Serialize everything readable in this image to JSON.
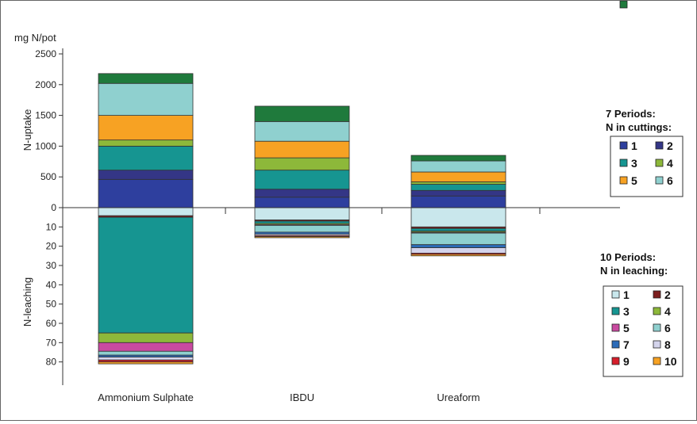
{
  "chart_data": {
    "type": "bar",
    "stacked": true,
    "categories": [
      "Ammonium Sulphate",
      "IBDU",
      "Ureaform"
    ],
    "y_unit_label": "mg N/pot",
    "upper": {
      "ylabel": "N-uptake",
      "ylim": [
        0,
        2500
      ],
      "ticks": [
        "0",
        "500",
        "1000",
        "1500",
        "2000",
        "2500"
      ],
      "legend_title": [
        "7 Periods:",
        "N in cuttings:"
      ],
      "series": [
        {
          "name": "1",
          "color": "#2E3F9E",
          "values": [
            460,
            170,
            190
          ]
        },
        {
          "name": "2",
          "color": "#343686",
          "values": [
            150,
            130,
            90
          ]
        },
        {
          "name": "3",
          "color": "#169591",
          "values": [
            390,
            310,
            100
          ]
        },
        {
          "name": "4",
          "color": "#8DB83A",
          "values": [
            100,
            200,
            40
          ]
        },
        {
          "name": "5",
          "color": "#F7A223",
          "values": [
            400,
            270,
            160
          ]
        },
        {
          "name": "6",
          "color": "#8FD0CF",
          "values": [
            520,
            320,
            180
          ]
        },
        {
          "name": "7",
          "color": "#1F7A3C",
          "values": [
            160,
            250,
            90
          ]
        }
      ]
    },
    "lower": {
      "ylabel": "N-leaching",
      "ylim": [
        0,
        90
      ],
      "ticks": [
        "10",
        "20",
        "30",
        "40",
        "50",
        "60",
        "70",
        "80"
      ],
      "legend_title": [
        "10 Periods:",
        "N in leaching:"
      ],
      "series": [
        {
          "name": "1",
          "color": "#C9E7EC",
          "values": [
            4.2,
            6.4,
            10.0
          ]
        },
        {
          "name": "2",
          "color": "#7C1E1E",
          "values": [
            0.8,
            0.6,
            0.8
          ]
        },
        {
          "name": "3",
          "color": "#169591",
          "values": [
            60.0,
            1.2,
            1.4
          ]
        },
        {
          "name": "4",
          "color": "#8DB83A",
          "values": [
            5.0,
            0.6,
            0.6
          ]
        },
        {
          "name": "5",
          "color": "#C94AA0",
          "values": [
            4.5,
            0.4,
            0.4
          ]
        },
        {
          "name": "6",
          "color": "#8FD0CF",
          "values": [
            2.0,
            3.5,
            6.0
          ]
        },
        {
          "name": "7",
          "color": "#2C6BB8",
          "values": [
            1.0,
            1.0,
            1.6
          ]
        },
        {
          "name": "8",
          "color": "#D4D4EC",
          "values": [
            1.5,
            0.8,
            2.8
          ]
        },
        {
          "name": "9",
          "color": "#D61E2B",
          "values": [
            1.0,
            0.5,
            0.6
          ]
        },
        {
          "name": "10",
          "color": "#F7A223",
          "values": [
            1.0,
            0.6,
            0.8
          ]
        }
      ]
    }
  }
}
